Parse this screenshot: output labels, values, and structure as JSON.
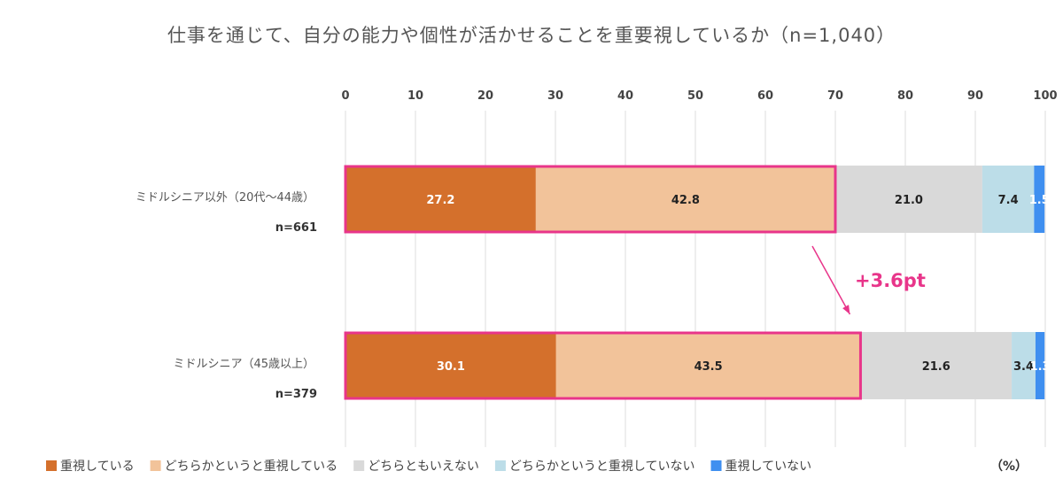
{
  "chart_data": {
    "type": "bar",
    "stacked": true,
    "orientation": "horizontal",
    "title": "仕事を通じて、自分の能力や個性が活かせることを重要視しているか（n=1,040）",
    "xlim": [
      0,
      100
    ],
    "xticks": [
      0,
      10,
      20,
      30,
      40,
      50,
      60,
      70,
      80,
      90,
      100
    ],
    "unit_label": "（%）",
    "categories": [
      {
        "label": "ミドルシニア以外（20代〜44歳）",
        "n": "n=661"
      },
      {
        "label": "ミドルシニア（45歳以上）",
        "n": "n=379"
      }
    ],
    "series": [
      {
        "name": "重視している",
        "color": "#d4702c",
        "values": [
          27.2,
          30.1
        ],
        "label_color": "#ffffff"
      },
      {
        "name": "どちらかというと重視している",
        "color": "#f2c39a",
        "values": [
          42.8,
          43.5
        ],
        "label_color": "#222222"
      },
      {
        "name": "どちらともいえない",
        "color": "#d9d9d9",
        "values": [
          21.0,
          21.6
        ],
        "label_color": "#222222"
      },
      {
        "name": "どちらかというと重視していない",
        "color": "#bcdde8",
        "values": [
          7.4,
          3.4
        ],
        "label_color": "#222222"
      },
      {
        "name": "重視していない",
        "color": "#3f8ff0",
        "values": [
          1.5,
          1.3
        ],
        "label_color": "#ffffff"
      }
    ],
    "annotation": {
      "text": "+3.6pt",
      "color": "#e8358a"
    },
    "highlight_color": "#e8358a",
    "grid": true,
    "legend_position": "bottom"
  }
}
